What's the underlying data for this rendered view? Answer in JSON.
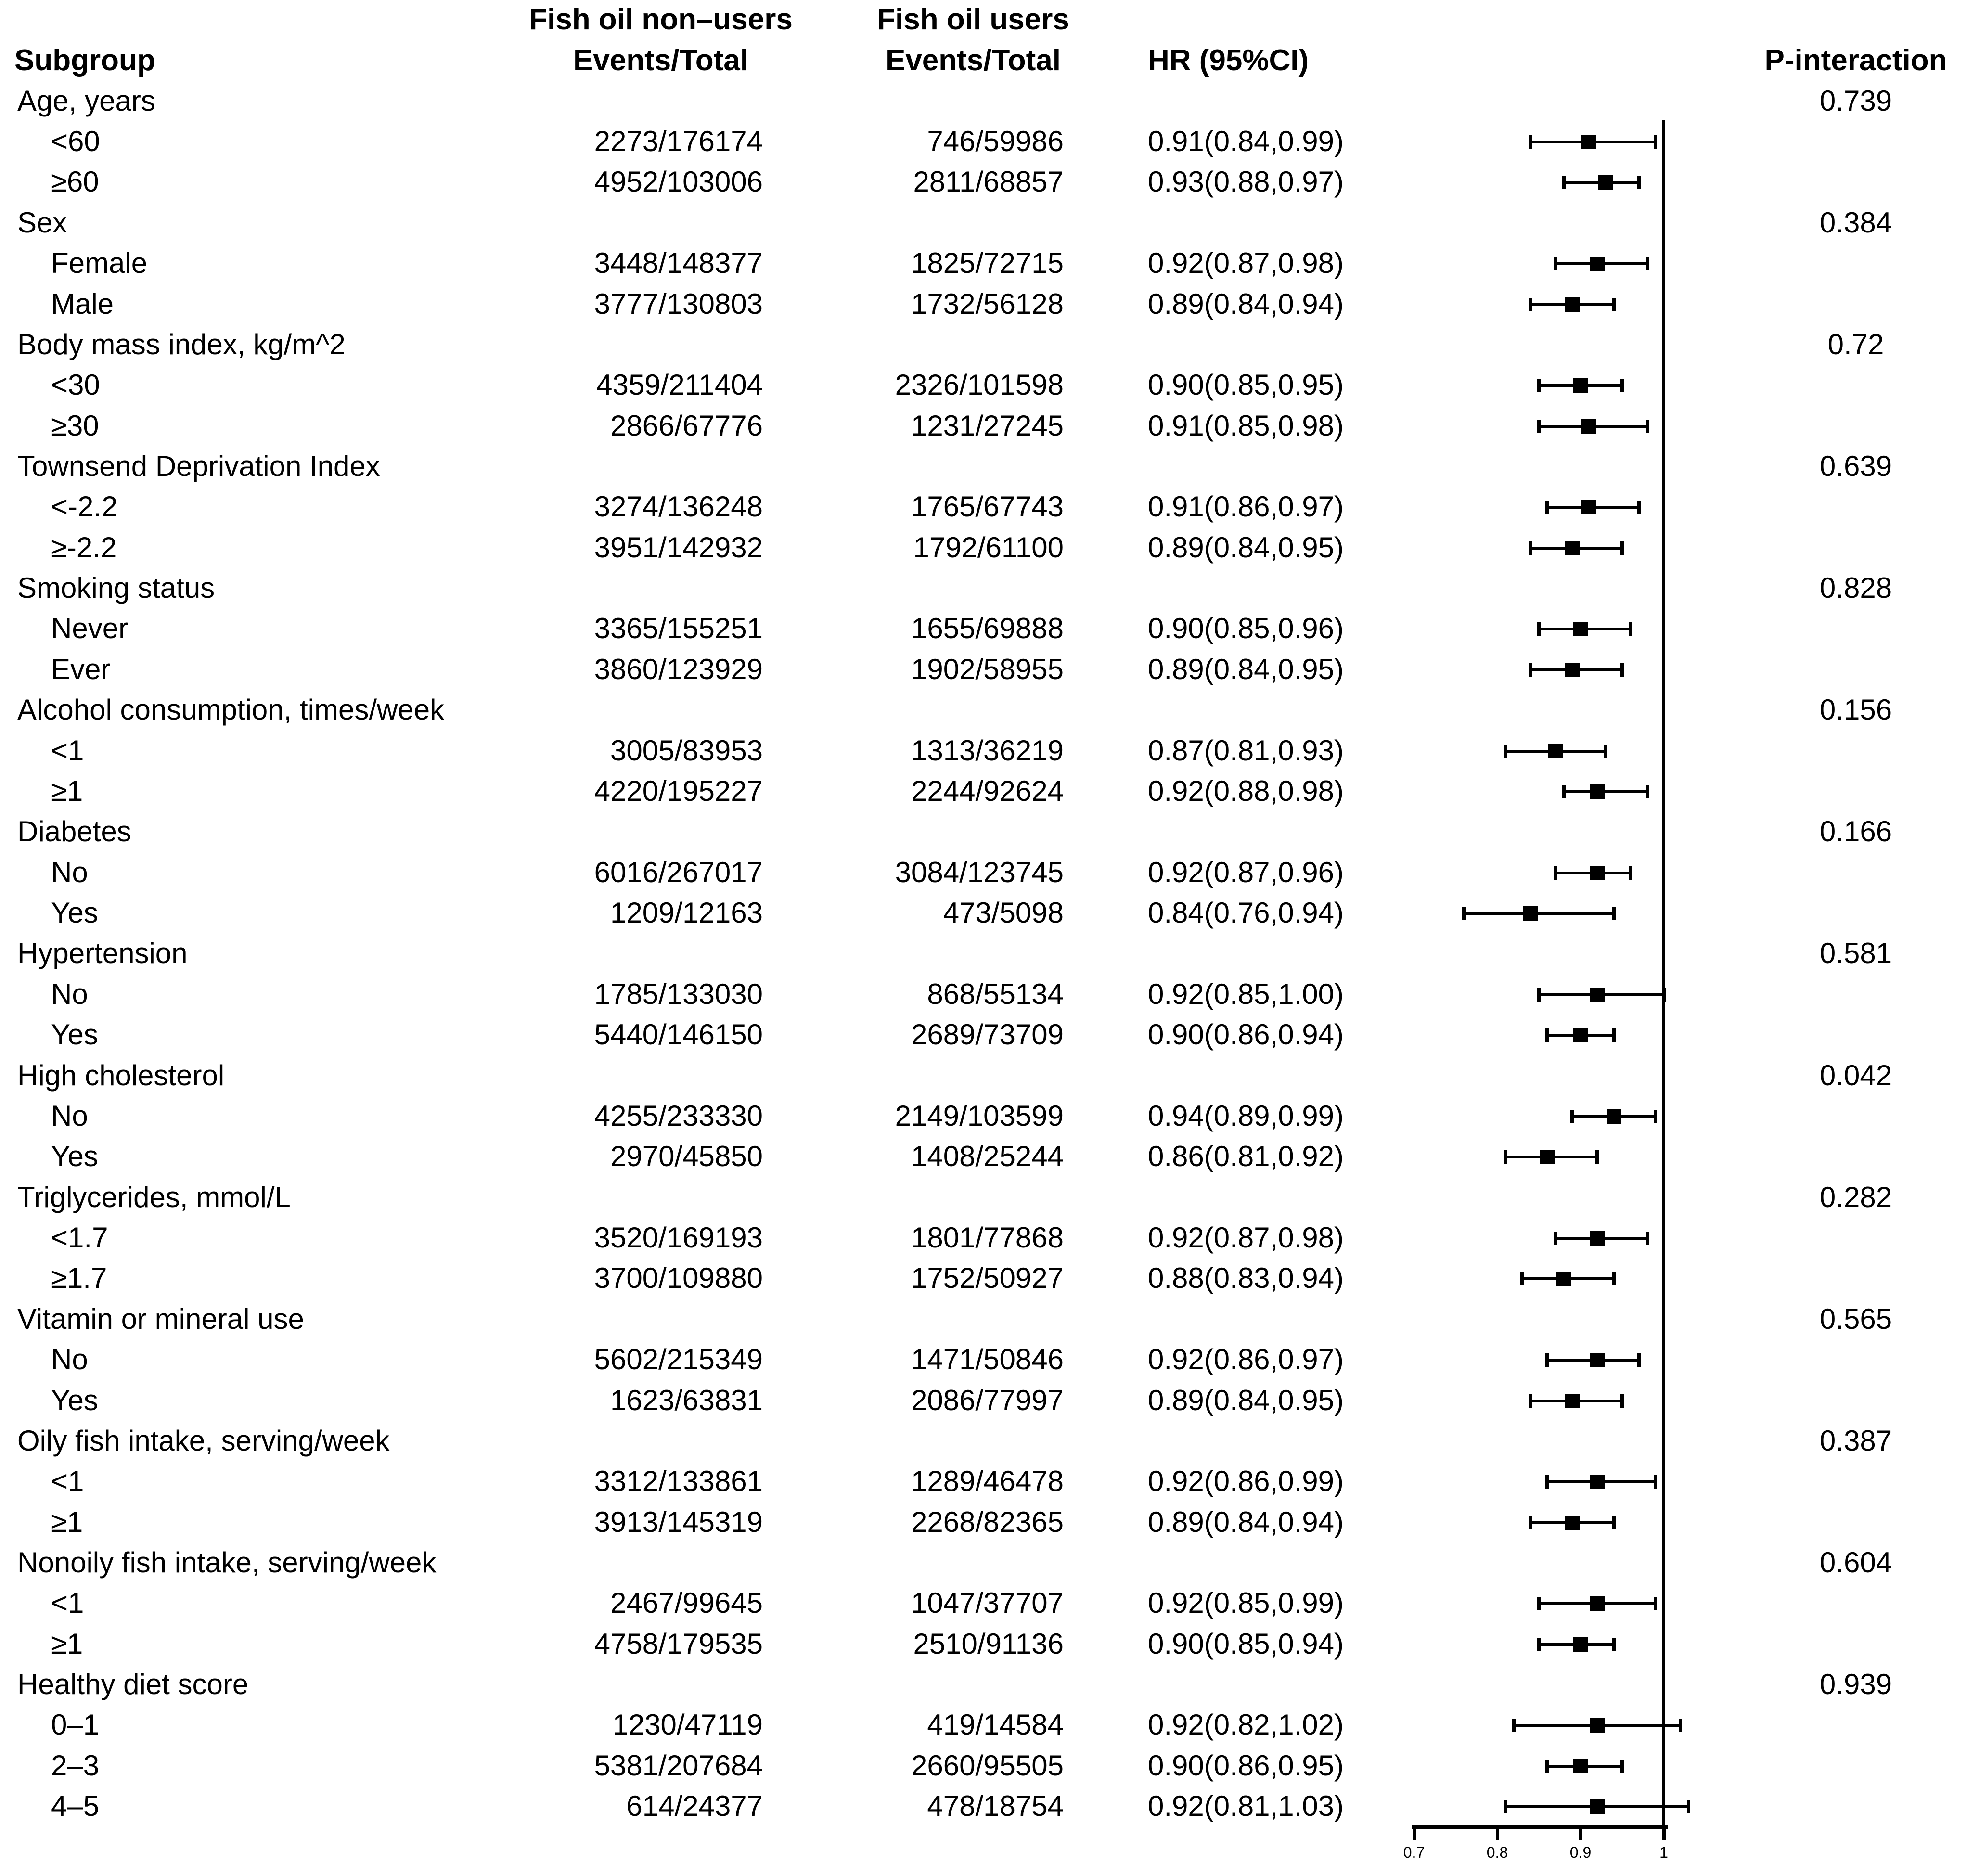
{
  "header": {
    "subgroup": "Subgroup",
    "nonusers_line1": "Fish oil non–users",
    "nonusers_line2": "Events/Total",
    "users_line1": "Fish oil users",
    "users_line2": "Events/Total",
    "hr": "HR  (95%CI)",
    "p_interaction": "P-interaction"
  },
  "chart_data": {
    "type": "forest",
    "effect_measure": "HR (95%CI)",
    "x_axis": {
      "tick_labels": [
        "0.7",
        "0.8",
        "0.9",
        "1"
      ],
      "tick_values": [
        0.7,
        0.8,
        0.9,
        1
      ],
      "reference_line": 1.0,
      "scale": "linear"
    },
    "groups": [
      {
        "label": "Age, years",
        "p_interaction": "0.739",
        "items": [
          {
            "label": "<60",
            "nonusers": "2273/176174",
            "users": "746/59986",
            "hr_text": "0.91(0.84,0.99)",
            "hr": 0.91,
            "lo": 0.84,
            "hi": 0.99
          },
          {
            "label": "≥60",
            "nonusers": "4952/103006",
            "users": "2811/68857",
            "hr_text": "0.93(0.88,0.97)",
            "hr": 0.93,
            "lo": 0.88,
            "hi": 0.97
          }
        ]
      },
      {
        "label": "Sex",
        "p_interaction": "0.384",
        "items": [
          {
            "label": "Female",
            "nonusers": "3448/148377",
            "users": "1825/72715",
            "hr_text": "0.92(0.87,0.98)",
            "hr": 0.92,
            "lo": 0.87,
            "hi": 0.98
          },
          {
            "label": "Male",
            "nonusers": "3777/130803",
            "users": "1732/56128",
            "hr_text": "0.89(0.84,0.94)",
            "hr": 0.89,
            "lo": 0.84,
            "hi": 0.94
          }
        ]
      },
      {
        "label": "Body mass index, kg/m^2",
        "p_interaction": "0.72",
        "items": [
          {
            "label": "<30",
            "nonusers": "4359/211404",
            "users": "2326/101598",
            "hr_text": "0.90(0.85,0.95)",
            "hr": 0.9,
            "lo": 0.85,
            "hi": 0.95
          },
          {
            "label": "≥30",
            "nonusers": "2866/67776",
            "users": "1231/27245",
            "hr_text": "0.91(0.85,0.98)",
            "hr": 0.91,
            "lo": 0.85,
            "hi": 0.98
          }
        ]
      },
      {
        "label": "Townsend Deprivation Index",
        "p_interaction": "0.639",
        "items": [
          {
            "label": "<-2.2",
            "nonusers": "3274/136248",
            "users": "1765/67743",
            "hr_text": "0.91(0.86,0.97)",
            "hr": 0.91,
            "lo": 0.86,
            "hi": 0.97
          },
          {
            "label": "≥-2.2",
            "nonusers": "3951/142932",
            "users": "1792/61100",
            "hr_text": "0.89(0.84,0.95)",
            "hr": 0.89,
            "lo": 0.84,
            "hi": 0.95
          }
        ]
      },
      {
        "label": "Smoking status",
        "p_interaction": "0.828",
        "items": [
          {
            "label": "Never",
            "nonusers": "3365/155251",
            "users": "1655/69888",
            "hr_text": "0.90(0.85,0.96)",
            "hr": 0.9,
            "lo": 0.85,
            "hi": 0.96
          },
          {
            "label": "Ever",
            "nonusers": "3860/123929",
            "users": "1902/58955",
            "hr_text": "0.89(0.84,0.95)",
            "hr": 0.89,
            "lo": 0.84,
            "hi": 0.95
          }
        ]
      },
      {
        "label": "Alcohol consumption, times/week",
        "p_interaction": "0.156",
        "items": [
          {
            "label": "<1",
            "nonusers": "3005/83953",
            "users": "1313/36219",
            "hr_text": "0.87(0.81,0.93)",
            "hr": 0.87,
            "lo": 0.81,
            "hi": 0.93
          },
          {
            "label": "≥1",
            "nonusers": "4220/195227",
            "users": "2244/92624",
            "hr_text": "0.92(0.88,0.98)",
            "hr": 0.92,
            "lo": 0.88,
            "hi": 0.98
          }
        ]
      },
      {
        "label": "Diabetes",
        "p_interaction": "0.166",
        "items": [
          {
            "label": "No",
            "nonusers": "6016/267017",
            "users": "3084/123745",
            "hr_text": "0.92(0.87,0.96)",
            "hr": 0.92,
            "lo": 0.87,
            "hi": 0.96
          },
          {
            "label": "Yes",
            "nonusers": "1209/12163",
            "users": "473/5098",
            "hr_text": "0.84(0.76,0.94)",
            "hr": 0.84,
            "lo": 0.76,
            "hi": 0.94
          }
        ]
      },
      {
        "label": "Hypertension",
        "p_interaction": "0.581",
        "items": [
          {
            "label": "No",
            "nonusers": "1785/133030",
            "users": "868/55134",
            "hr_text": "0.92(0.85,1.00)",
            "hr": 0.92,
            "lo": 0.85,
            "hi": 1.0
          },
          {
            "label": "Yes",
            "nonusers": "5440/146150",
            "users": "2689/73709",
            "hr_text": "0.90(0.86,0.94)",
            "hr": 0.9,
            "lo": 0.86,
            "hi": 0.94
          }
        ]
      },
      {
        "label": "High cholesterol",
        "p_interaction": "0.042",
        "items": [
          {
            "label": "No",
            "nonusers": "4255/233330",
            "users": "2149/103599",
            "hr_text": "0.94(0.89,0.99)",
            "hr": 0.94,
            "lo": 0.89,
            "hi": 0.99
          },
          {
            "label": "Yes",
            "nonusers": "2970/45850",
            "users": "1408/25244",
            "hr_text": "0.86(0.81,0.92)",
            "hr": 0.86,
            "lo": 0.81,
            "hi": 0.92
          }
        ]
      },
      {
        "label": "Triglycerides, mmol/L",
        "p_interaction": "0.282",
        "items": [
          {
            "label": "<1.7",
            "nonusers": "3520/169193",
            "users": "1801/77868",
            "hr_text": "0.92(0.87,0.98)",
            "hr": 0.92,
            "lo": 0.87,
            "hi": 0.98
          },
          {
            "label": "≥1.7",
            "nonusers": "3700/109880",
            "users": "1752/50927",
            "hr_text": "0.88(0.83,0.94)",
            "hr": 0.88,
            "lo": 0.83,
            "hi": 0.94
          }
        ]
      },
      {
        "label": "Vitamin or mineral use",
        "p_interaction": "0.565",
        "items": [
          {
            "label": "No",
            "nonusers": "5602/215349",
            "users": "1471/50846",
            "hr_text": "0.92(0.86,0.97)",
            "hr": 0.92,
            "lo": 0.86,
            "hi": 0.97
          },
          {
            "label": "Yes",
            "nonusers": "1623/63831",
            "users": "2086/77997",
            "hr_text": "0.89(0.84,0.95)",
            "hr": 0.89,
            "lo": 0.84,
            "hi": 0.95
          }
        ]
      },
      {
        "label": "Oily fish intake, serving/week",
        "p_interaction": "0.387",
        "items": [
          {
            "label": "<1",
            "nonusers": "3312/133861",
            "users": "1289/46478",
            "hr_text": "0.92(0.86,0.99)",
            "hr": 0.92,
            "lo": 0.86,
            "hi": 0.99
          },
          {
            "label": "≥1",
            "nonusers": "3913/145319",
            "users": "2268/82365",
            "hr_text": "0.89(0.84,0.94)",
            "hr": 0.89,
            "lo": 0.84,
            "hi": 0.94
          }
        ]
      },
      {
        "label": "Nonoily fish intake, serving/week",
        "p_interaction": "0.604",
        "items": [
          {
            "label": "<1",
            "nonusers": "2467/99645",
            "users": "1047/37707",
            "hr_text": "0.92(0.85,0.99)",
            "hr": 0.92,
            "lo": 0.85,
            "hi": 0.99
          },
          {
            "label": "≥1",
            "nonusers": "4758/179535",
            "users": "2510/91136",
            "hr_text": "0.90(0.85,0.94)",
            "hr": 0.9,
            "lo": 0.85,
            "hi": 0.94
          }
        ]
      },
      {
        "label": "Healthy diet score",
        "p_interaction": "0.939",
        "items": [
          {
            "label": "0–1",
            "nonusers": "1230/47119",
            "users": "419/14584",
            "hr_text": "0.92(0.82,1.02)",
            "hr": 0.92,
            "lo": 0.82,
            "hi": 1.02
          },
          {
            "label": "2–3",
            "nonusers": "5381/207684",
            "users": "2660/95505",
            "hr_text": "0.90(0.86,0.95)",
            "hr": 0.9,
            "lo": 0.86,
            "hi": 0.95
          },
          {
            "label": "4–5",
            "nonusers": "614/24377",
            "users": "478/18754",
            "hr_text": "0.92(0.81,1.03)",
            "hr": 0.92,
            "lo": 0.81,
            "hi": 1.03
          }
        ]
      }
    ]
  }
}
